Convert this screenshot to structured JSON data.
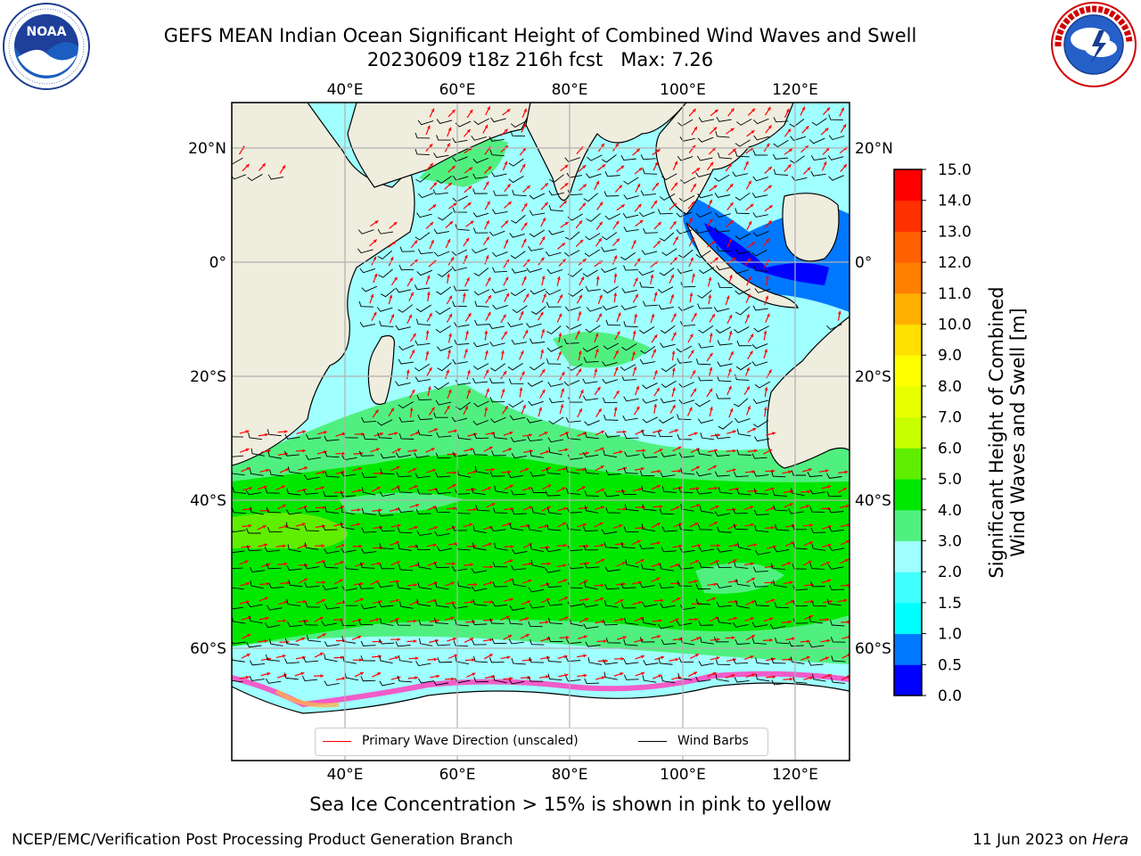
{
  "header": {
    "title_line1": "GEFS MEAN Indian Ocean Significant Height of Combined Wind Waves and Swell",
    "title_line2": "20230609 t18z 216h fcst   Max: 7.26"
  },
  "logos": {
    "left": {
      "name": "NOAA",
      "text": "NOAA",
      "ring_text": "NATIONAL OCEANIC AND ATMOSPHERIC ADMINISTRATION · U.S. DEPARTMENT OF COMMERCE"
    },
    "right": {
      "name": "National Weather Service",
      "ring_text": "NATIONAL WEATHER SERVICE"
    }
  },
  "map": {
    "lon_ticks": [
      "40°E",
      "60°E",
      "80°E",
      "100°E",
      "120°E"
    ],
    "lat_ticks": [
      "20°N",
      "0°",
      "20°S",
      "40°S",
      "60°S"
    ],
    "legend": {
      "wave_label": "Primary Wave Direction (unscaled)",
      "wind_label": "Wind Barbs",
      "wave_color": "#ff0000",
      "wind_color": "#000000"
    },
    "colors": {
      "land": "#efedde",
      "ice": "#ffffff"
    }
  },
  "colorbar": {
    "title": "Significant Height of Combined Wind Waves and Swell [m]",
    "title_line1": "Significant Height of Combined",
    "title_line2": "Wind Waves and Swell [m]",
    "levels": [
      "0.0",
      "0.5",
      "1.0",
      "1.5",
      "2.0",
      "3.0",
      "4.0",
      "5.0",
      "6.0",
      "7.0",
      "8.0",
      "9.0",
      "10.0",
      "11.0",
      "12.0",
      "13.0",
      "14.0",
      "15.0"
    ],
    "colors": [
      "#0000ff",
      "#0078ff",
      "#00ffff",
      "#40ffff",
      "#a0ffff",
      "#50f080",
      "#00e800",
      "#60ee00",
      "#c8ff00",
      "#e8ff00",
      "#ffff00",
      "#ffe000",
      "#ffb000",
      "#ff8000",
      "#ff6000",
      "#ff3000",
      "#ff0000"
    ]
  },
  "caption": "Sea Ice Concentration > 15% is shown in pink to yellow",
  "footer": {
    "left": "NCEP/EMC/Verification Post Processing Product Generation Branch",
    "right_date": "11 Jun 2023 on ",
    "right_host": "Hera"
  }
}
